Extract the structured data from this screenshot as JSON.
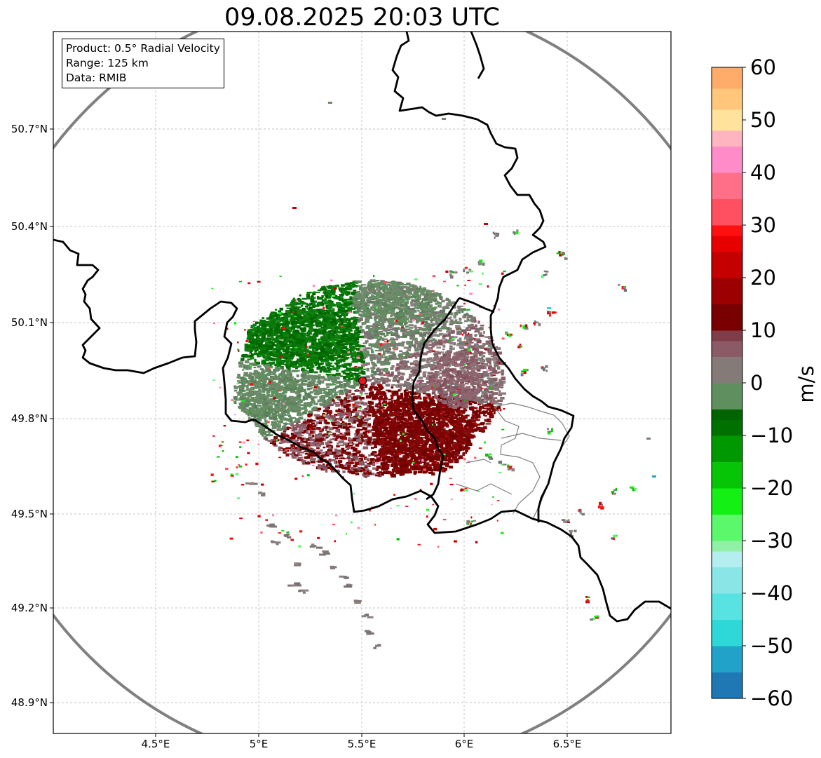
{
  "title": "09.08.2025 20:03 UTC",
  "info": {
    "product": "Product: 0.5° Radial Velocity",
    "range": "Range: 125 km",
    "source": "Data: RMIB"
  },
  "map": {
    "lat_ticks": [
      "50.7°N",
      "50.4°N",
      "50.1°N",
      "49.8°N",
      "49.5°N",
      "49.2°N",
      "48.9°N"
    ],
    "lon_ticks": [
      "4.5°E",
      "5°E",
      "5.5°E",
      "6°E",
      "6.5°E"
    ],
    "radar_site": {
      "lon": 5.506,
      "lat": 49.914
    },
    "range_km": 125,
    "colors": {
      "range_ring": "#808080",
      "border": "#000000",
      "admin_border": "#808080",
      "radar_marker": "#e8141e",
      "grid": "#b0b0b0"
    }
  },
  "colorbar": {
    "ticks": [
      "60",
      "50",
      "40",
      "30",
      "20",
      "10",
      "0",
      "−10",
      "−20",
      "−30",
      "−40",
      "−50",
      "−60"
    ],
    "unit": "m/s",
    "vmin": -60,
    "vmax": 60,
    "stops": [
      {
        "value": -60,
        "color": "#1f77b4"
      },
      {
        "value": -55,
        "color": "#21a3c9"
      },
      {
        "value": -50,
        "color": "#2ed8d8"
      },
      {
        "value": -45,
        "color": "#58e2e2"
      },
      {
        "value": -40,
        "color": "#8ae6e6"
      },
      {
        "value": -35,
        "color": "#b5eeee"
      },
      {
        "value": -32,
        "color": "#8ff0a6"
      },
      {
        "value": -30,
        "color": "#5cf86c"
      },
      {
        "value": -25,
        "color": "#14f014"
      },
      {
        "value": -20,
        "color": "#06c406"
      },
      {
        "value": -15,
        "color": "#009800"
      },
      {
        "value": -10,
        "color": "#007000"
      },
      {
        "value": -7,
        "color": "#006400"
      },
      {
        "value": -5,
        "color": "#5f8f5f"
      },
      {
        "value": 0,
        "color": "#847a77"
      },
      {
        "value": 5,
        "color": "#8a5a66"
      },
      {
        "value": 8,
        "color": "#803c48"
      },
      {
        "value": 10,
        "color": "#780000"
      },
      {
        "value": 15,
        "color": "#9c0000"
      },
      {
        "value": 20,
        "color": "#c40000"
      },
      {
        "value": 25,
        "color": "#e60000"
      },
      {
        "value": 28,
        "color": "#ff1010"
      },
      {
        "value": 30,
        "color": "#ff5062"
      },
      {
        "value": 35,
        "color": "#ff7088"
      },
      {
        "value": 40,
        "color": "#ff8cc8"
      },
      {
        "value": 45,
        "color": "#ffb4c0"
      },
      {
        "value": 48,
        "color": "#ffe39c"
      },
      {
        "value": 52,
        "color": "#ffc67c"
      },
      {
        "value": 56,
        "color": "#ffab6a"
      },
      {
        "value": 60,
        "color": "#ff9a55"
      }
    ]
  }
}
